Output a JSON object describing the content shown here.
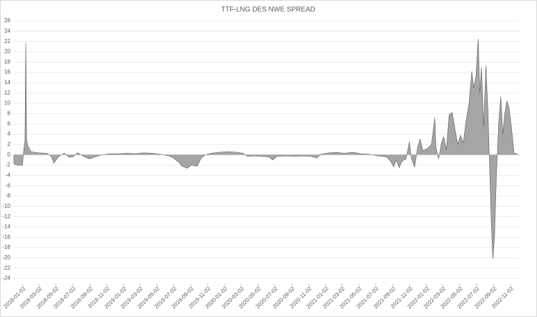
{
  "chart_data": {
    "type": "area",
    "title": "TTF-LNG DES NWE SPREAD",
    "color": "#a5a5a5",
    "grid": true,
    "xlim": [
      "2017-12-01",
      "2022-12-05"
    ],
    "ylim": [
      -25,
      26
    ],
    "yticks": [
      -24,
      -22,
      -20,
      -18,
      -16,
      -14,
      -12,
      -10,
      -8,
      -6,
      -4,
      -2,
      0,
      2,
      4,
      6,
      8,
      10,
      12,
      14,
      16,
      18,
      20,
      22,
      24,
      26
    ],
    "xticks": [
      "2018-01-02",
      "2018-03-02",
      "2018-05-02",
      "2018-07-02",
      "2018-09-02",
      "2018-11-02",
      "2019-01-02",
      "2019-03-02",
      "2019-05-02",
      "2019-07-02",
      "2019-09-02",
      "2019-11-02",
      "2020-01-02",
      "2020-03-02",
      "2020-05-02",
      "2020-07-02",
      "2020-09-02",
      "2020-11-02",
      "2021-01-02",
      "2021-03-02",
      "2021-05-02",
      "2021-07-02",
      "2021-09-02",
      "2021-11-02",
      "2022-01-02",
      "2022-03-02",
      "2022-05-02",
      "2022-07-02",
      "2022-09-02",
      "2022-11-02"
    ],
    "x": [
      "2017-12-01",
      "2017-12-15",
      "2018-01-01",
      "2018-01-05",
      "2018-01-10",
      "2018-01-13",
      "2018-01-16",
      "2018-01-20",
      "2018-02-01",
      "2018-03-01",
      "2018-04-01",
      "2018-04-15",
      "2018-04-25",
      "2018-05-10",
      "2018-06-01",
      "2018-06-20",
      "2018-07-05",
      "2018-07-20",
      "2018-08-10",
      "2018-09-01",
      "2018-09-20",
      "2018-10-15",
      "2018-11-15",
      "2018-12-15",
      "2019-01-15",
      "2019-02-15",
      "2019-03-15",
      "2019-04-15",
      "2019-05-15",
      "2019-06-15",
      "2019-07-01",
      "2019-07-20",
      "2019-08-01",
      "2019-08-20",
      "2019-09-05",
      "2019-09-25",
      "2019-10-10",
      "2019-10-25",
      "2019-11-15",
      "2019-12-15",
      "2020-01-15",
      "2020-02-15",
      "2020-03-10",
      "2020-03-25",
      "2020-04-20",
      "2020-05-15",
      "2020-06-10",
      "2020-06-25",
      "2020-07-10",
      "2020-08-10",
      "2020-09-10",
      "2020-10-10",
      "2020-11-10",
      "2020-12-01",
      "2020-12-15",
      "2021-01-15",
      "2021-02-10",
      "2021-03-10",
      "2021-04-10",
      "2021-05-10",
      "2021-06-10",
      "2021-07-10",
      "2021-08-10",
      "2021-08-25",
      "2021-09-05",
      "2021-09-15",
      "2021-09-25",
      "2021-10-05",
      "2021-10-20",
      "2021-11-01",
      "2021-11-08",
      "2021-11-20",
      "2021-12-01",
      "2021-12-10",
      "2021-12-20",
      "2022-01-05",
      "2022-01-20",
      "2022-02-01",
      "2022-02-05",
      "2022-02-15",
      "2022-02-25",
      "2022-03-05",
      "2022-03-15",
      "2022-03-25",
      "2022-04-05",
      "2022-04-15",
      "2022-04-25",
      "2022-05-05",
      "2022-05-15",
      "2022-05-25",
      "2022-06-05",
      "2022-06-15",
      "2022-06-22",
      "2022-06-30",
      "2022-07-08",
      "2022-07-14",
      "2022-07-20",
      "2022-07-28",
      "2022-08-05",
      "2022-08-12",
      "2022-08-18",
      "2022-08-24",
      "2022-08-30",
      "2022-09-05",
      "2022-09-12",
      "2022-09-20",
      "2022-09-28",
      "2022-10-05",
      "2022-10-12",
      "2022-10-20",
      "2022-10-28",
      "2022-11-05",
      "2022-11-15",
      "2022-11-25"
    ],
    "values": [
      -1.8,
      -2,
      -2,
      0.5,
      2.8,
      21.8,
      3,
      1.8,
      0.6,
      0.4,
      0.3,
      -0.3,
      -1.6,
      -0.4,
      0.3,
      -0.5,
      -0.3,
      0.4,
      -0.3,
      -0.8,
      -0.4,
      0,
      0.2,
      0.2,
      0.3,
      0.2,
      0.4,
      0.3,
      0.1,
      -0.2,
      -0.6,
      -1.4,
      -2.2,
      -2.6,
      -2,
      -2.2,
      -0.6,
      0,
      0.3,
      0.5,
      0.6,
      0.5,
      0.3,
      -0.3,
      -0.2,
      -0.3,
      -0.4,
      -1,
      -0.3,
      -0.2,
      -0.3,
      -0.2,
      -0.3,
      -0.6,
      0.1,
      0.4,
      0.5,
      0.3,
      0.5,
      0.2,
      0.1,
      -0.2,
      -0.4,
      -1.2,
      -2.3,
      -1,
      -2.5,
      -1.2,
      -0.8,
      2.5,
      -0.6,
      -2.4,
      1.5,
      3,
      0.8,
      1.2,
      2,
      7.2,
      1.5,
      -0.8,
      2.3,
      3.5,
      1,
      7.8,
      8.2,
      5,
      2,
      3.8,
      2.3,
      6.5,
      10,
      16.2,
      13,
      15.2,
      22.5,
      12,
      17,
      5.5,
      17.3,
      9,
      -1.5,
      -12.5,
      -20.2,
      -16,
      -4,
      6,
      11.3,
      4,
      8,
      10.5,
      9,
      5.5,
      0.2,
      0.3
    ]
  }
}
